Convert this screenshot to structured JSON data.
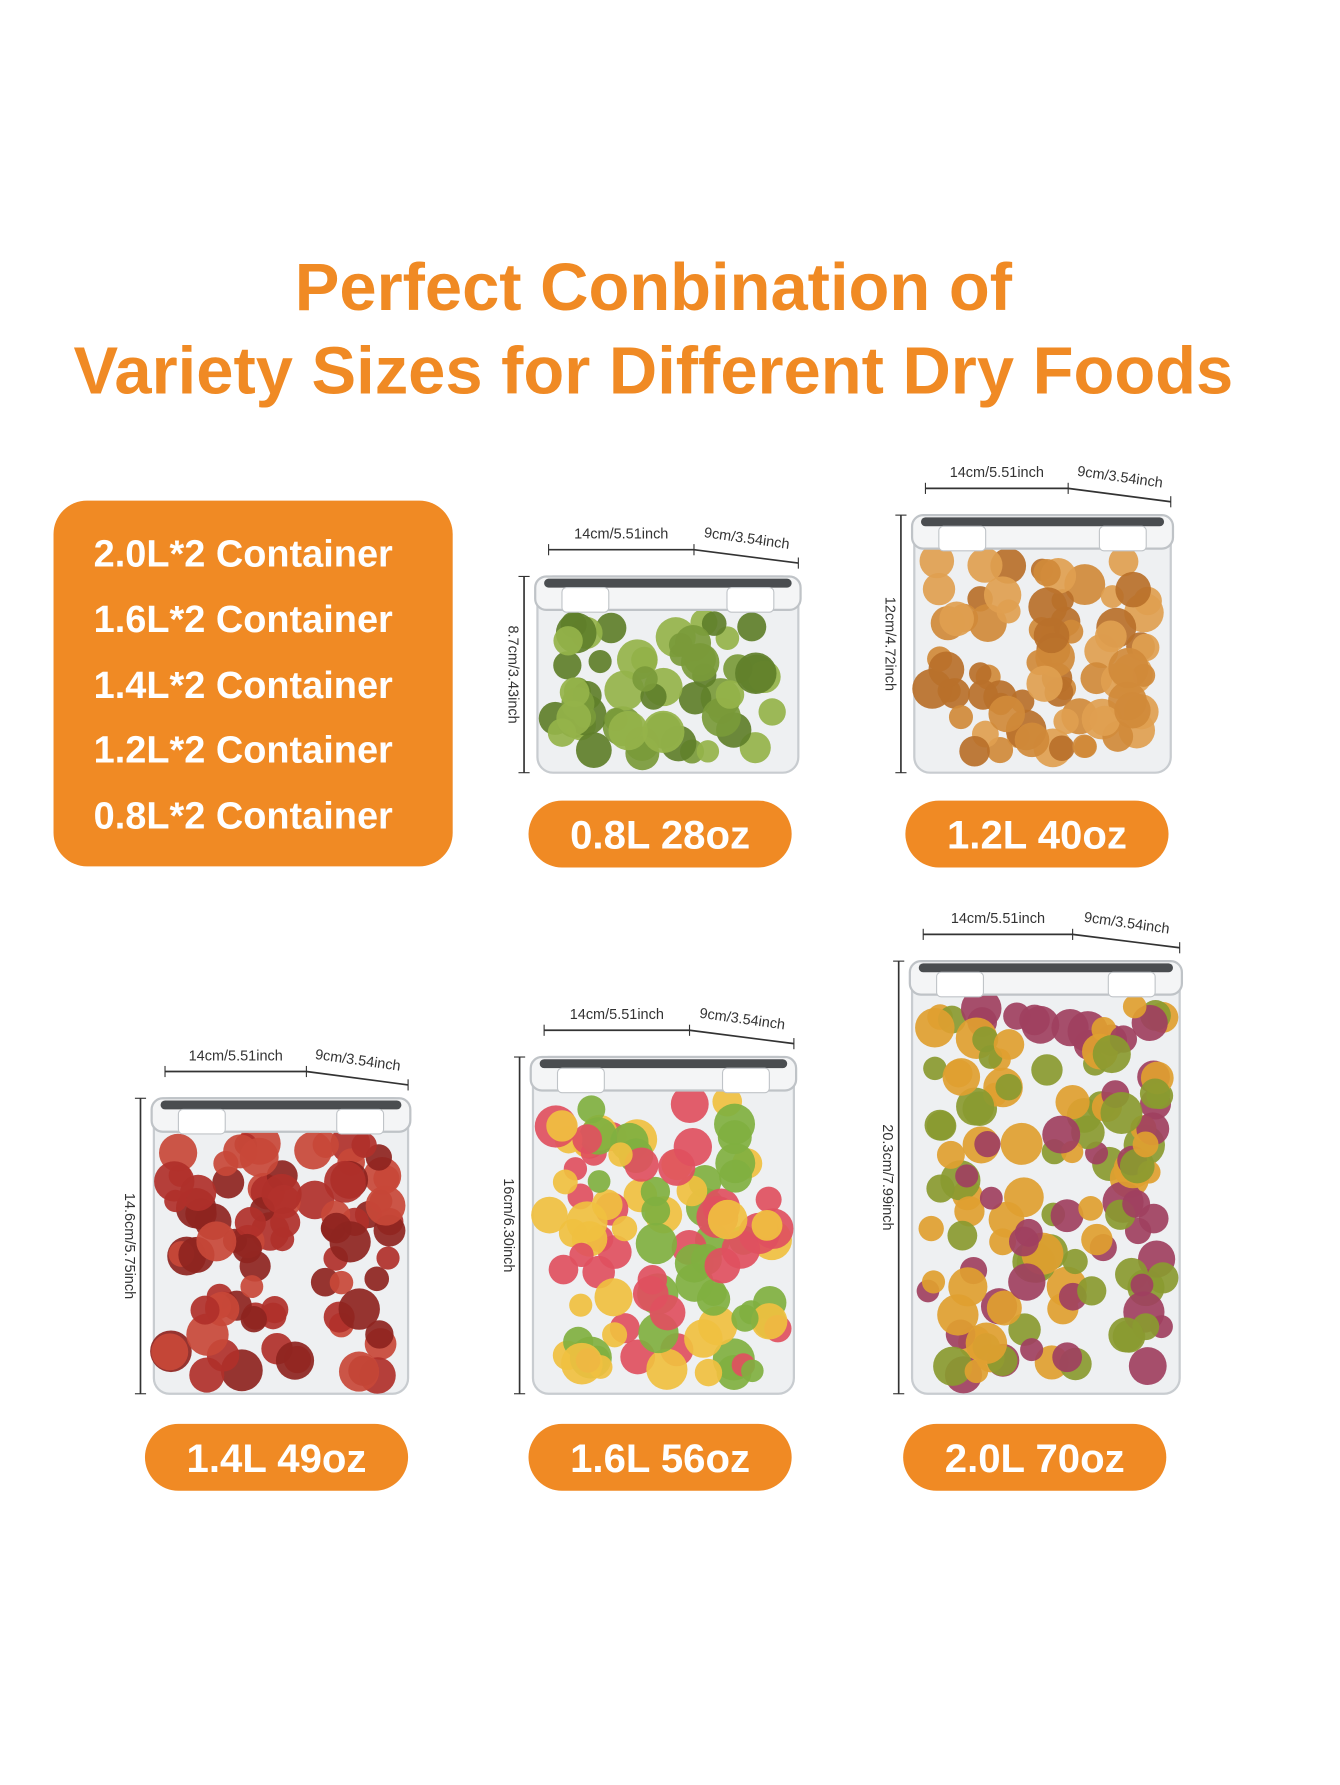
{
  "title": [
    "Perfect Conbination of",
    "Variety Sizes for Different Dry Foods"
  ],
  "set_list": [
    "2.0L*2 Container",
    "1.6L*2 Container",
    "1.4L*2 Container",
    "1.2L*2 Container",
    "0.8L*2 Container"
  ],
  "containers": [
    {
      "width": "14cm/5.51inch",
      "depth": "9cm/3.54inch",
      "height": "8.7cm/3.43inch",
      "capacity": "0.8L 28oz"
    },
    {
      "width": "14cm/5.51inch",
      "depth": "9cm/3.54inch",
      "height": "12cm/4.72inch",
      "capacity": "1.2L 40oz"
    },
    {
      "width": "14cm/5.51inch",
      "depth": "9cm/3.54inch",
      "height": "14.6cm/5.75inch",
      "capacity": "1.4L 49oz"
    },
    {
      "width": "14cm/5.51inch",
      "depth": "9cm/3.54inch",
      "height": "16cm/6.30inch",
      "capacity": "1.6L 56oz"
    },
    {
      "width": "14cm/5.51inch",
      "depth": "9cm/3.54inch",
      "height": "20.3cm/7.99inch",
      "capacity": "2.0L 70oz"
    }
  ]
}
